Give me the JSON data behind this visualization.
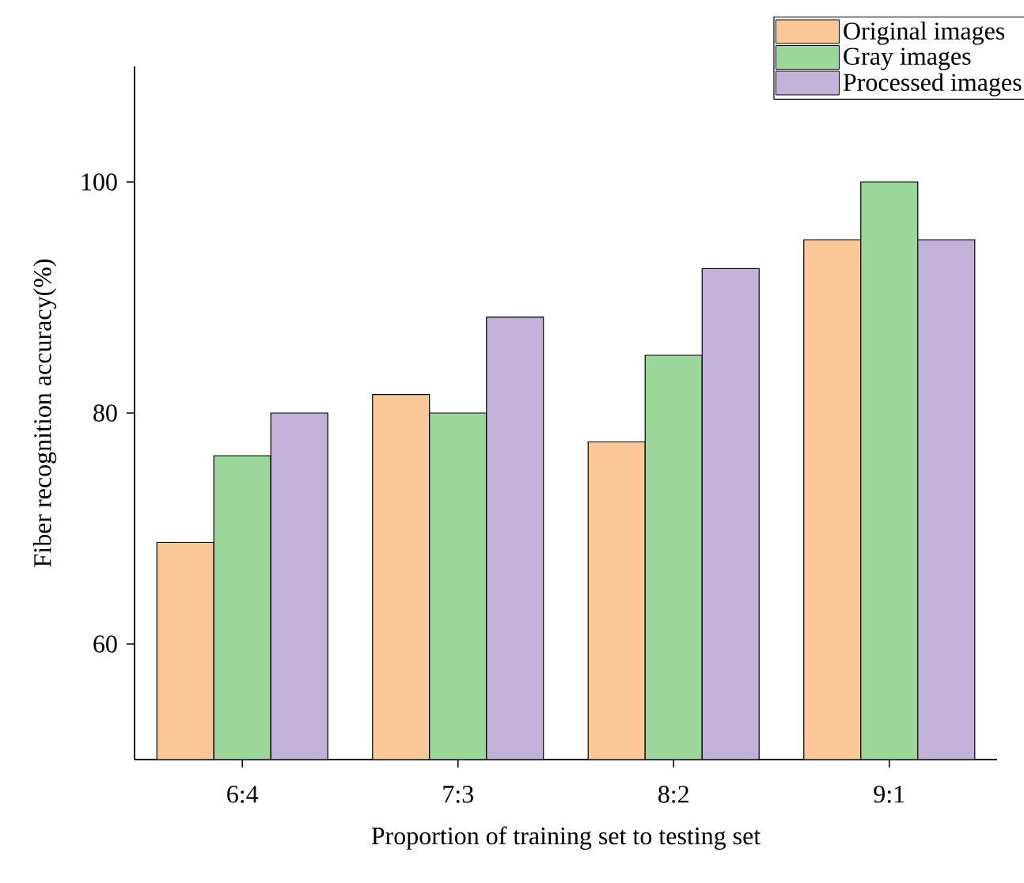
{
  "chart_data": {
    "type": "bar",
    "xlabel": "Proportion of training set to testing set",
    "ylabel": "Fiber recognition accuracy(%)",
    "categories": [
      "6:4",
      "7:3",
      "8:2",
      "9:1"
    ],
    "series": [
      {
        "name": "Original images",
        "color": "#fac896",
        "values": [
          68.8,
          81.6,
          77.5,
          95
        ]
      },
      {
        "name": "Gray images",
        "color": "#9bd79b",
        "values": [
          76.3,
          80,
          85,
          100
        ]
      },
      {
        "name": "Processed images",
        "color": "#c2b1d8",
        "values": [
          80,
          88.3,
          92.5,
          95
        ]
      }
    ],
    "ylim": [
      50,
      110
    ],
    "yticks": [
      60,
      80,
      100
    ],
    "grid": false,
    "legend": "top right"
  }
}
